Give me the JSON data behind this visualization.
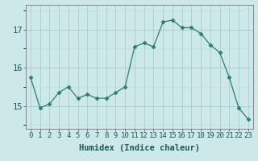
{
  "x": [
    0,
    1,
    2,
    3,
    4,
    5,
    6,
    7,
    8,
    9,
    10,
    11,
    12,
    13,
    14,
    15,
    16,
    17,
    18,
    19,
    20,
    21,
    22,
    23
  ],
  "y": [
    15.75,
    14.95,
    15.05,
    15.35,
    15.5,
    15.2,
    15.3,
    15.2,
    15.2,
    15.35,
    15.5,
    16.55,
    16.65,
    16.55,
    17.2,
    17.25,
    17.05,
    17.05,
    16.9,
    16.6,
    16.4,
    15.75,
    14.95,
    14.65
  ],
  "line_color": "#2e7d6e",
  "marker": "D",
  "marker_size": 2.5,
  "bg_color": "#cce8e8",
  "grid_color_major": "#aacccc",
  "grid_color_minor": "#bbdddd",
  "xlabel": "Humidex (Indice chaleur)",
  "ylabel": "",
  "yticks": [
    15,
    16,
    17
  ],
  "ylim": [
    14.4,
    17.65
  ],
  "xlim": [
    -0.5,
    23.5
  ],
  "xticks": [
    0,
    1,
    2,
    3,
    4,
    5,
    6,
    7,
    8,
    9,
    10,
    11,
    12,
    13,
    14,
    15,
    16,
    17,
    18,
    19,
    20,
    21,
    22,
    23
  ],
  "xlabel_fontsize": 7.5,
  "ytick_fontsize": 7.5,
  "xtick_fontsize": 6.5
}
